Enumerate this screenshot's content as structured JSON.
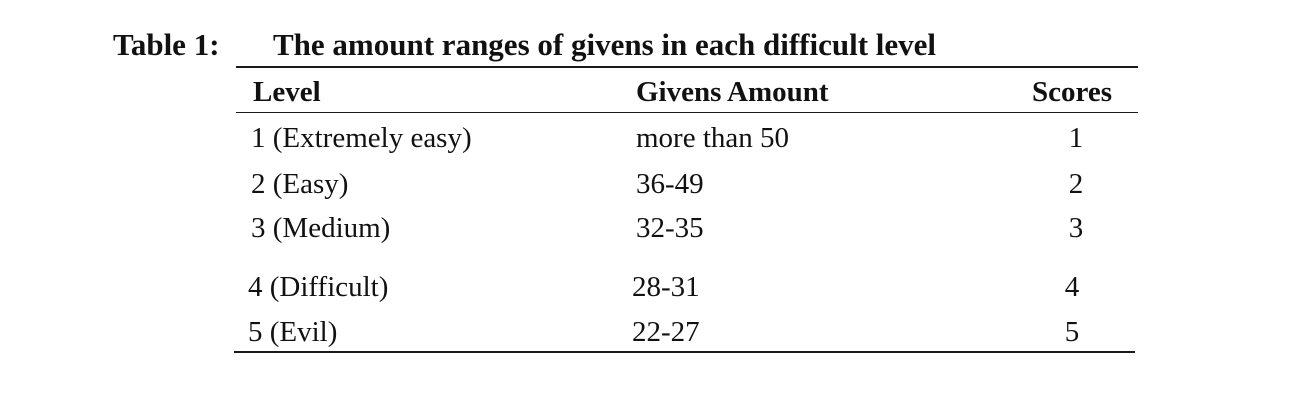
{
  "caption": {
    "label": "Table 1:",
    "title": "The amount ranges of givens in each difficult level"
  },
  "table": {
    "headers": [
      "Level",
      "Givens Amount",
      "Scores"
    ],
    "rows": [
      [
        "1 (Extremely easy)",
        "more than 50",
        "1"
      ],
      [
        "2 (Easy)",
        "36-49",
        "2"
      ],
      [
        "3 (Medium)",
        "32-35",
        "3"
      ],
      [
        "4 (Difficult)",
        "28-31",
        "4"
      ],
      [
        "5 (Evil)",
        "22-27",
        "5"
      ]
    ]
  }
}
